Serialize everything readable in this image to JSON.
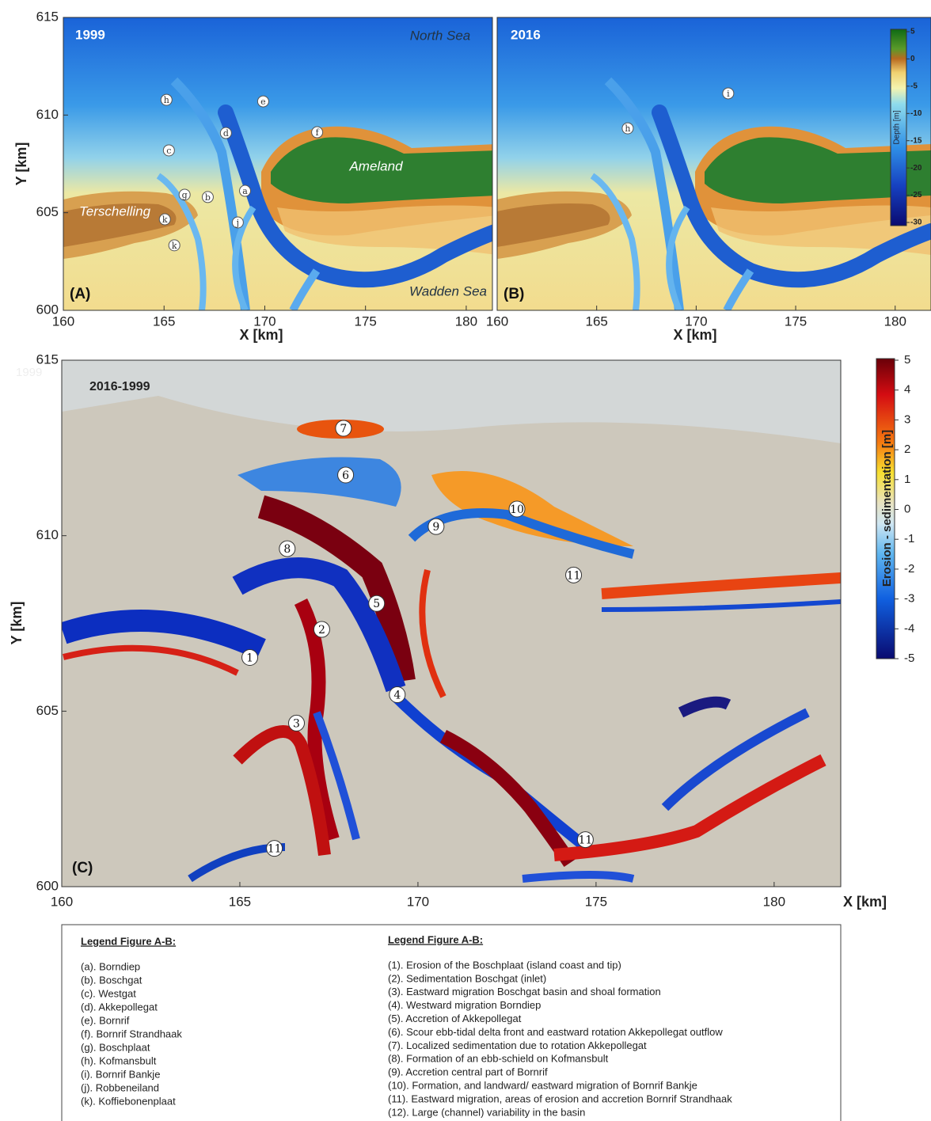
{
  "figure_ab": {
    "xlabel": "X [km]",
    "ylabel": "Y [km]",
    "ylim": [
      600,
      615
    ],
    "yticks": [
      600,
      605,
      610,
      615
    ],
    "colorbar": {
      "label": "Depth [m]",
      "lim": [
        -30,
        5
      ],
      "ticks": [
        5,
        0,
        -5,
        -10,
        -15,
        -20,
        -25,
        -30
      ]
    },
    "panels": [
      {
        "label": "(A)",
        "title": "1999",
        "xlim": [
          160,
          181.3
        ],
        "xticks": [
          160,
          165,
          170,
          175,
          180
        ],
        "place_names": [
          "North Sea",
          "Ameland",
          "Terschelling",
          "Wadden Sea"
        ],
        "markers": [
          {
            "id": "h",
            "x": 165.12,
            "y": 610.78
          },
          {
            "id": "e",
            "x": 169.92,
            "y": 610.7
          },
          {
            "id": "d",
            "x": 168.07,
            "y": 609.08
          },
          {
            "id": "f",
            "x": 172.6,
            "y": 609.12
          },
          {
            "id": "c",
            "x": 165.24,
            "y": 608.19
          },
          {
            "id": "g",
            "x": 166.02,
            "y": 605.92
          },
          {
            "id": "b",
            "x": 167.17,
            "y": 605.8
          },
          {
            "id": "a",
            "x": 169.02,
            "y": 606.12
          },
          {
            "id": "k",
            "x": 165.04,
            "y": 604.66
          },
          {
            "id": "j",
            "x": 168.66,
            "y": 604.5
          },
          {
            "id": "k",
            "x": 165.51,
            "y": 603.33
          }
        ]
      },
      {
        "label": "(B)",
        "title": "2016",
        "xlim": [
          160,
          181.8
        ],
        "xticks": [
          160,
          165,
          170,
          175,
          180
        ],
        "markers": [
          {
            "id": "h",
            "x": 166.56,
            "y": 609.32
          },
          {
            "id": "i",
            "x": 171.61,
            "y": 611.11
          }
        ]
      }
    ]
  },
  "figure_c": {
    "label": "(C)",
    "title": "2016-1999",
    "ghost_text": "1999",
    "xlabel": "X [km]",
    "ylabel": "Y [km]",
    "xlim": [
      160,
      181.87
    ],
    "xticks": [
      160,
      165,
      170,
      175,
      180
    ],
    "ylim": [
      600,
      615
    ],
    "yticks": [
      600,
      605,
      610,
      615
    ],
    "colorbar": {
      "label": "Erosion  -  sedimentation [m]",
      "lim": [
        -5,
        5
      ],
      "ticks": [
        5,
        4,
        3,
        2,
        1,
        0,
        -1,
        -2,
        -3,
        -4,
        -5
      ]
    },
    "markers": [
      {
        "id": "1",
        "x": 165.28,
        "y": 606.53
      },
      {
        "id": "2",
        "x": 167.3,
        "y": 607.33
      },
      {
        "id": "3",
        "x": 166.59,
        "y": 604.66
      },
      {
        "id": "4",
        "x": 169.42,
        "y": 605.47
      },
      {
        "id": "5",
        "x": 168.84,
        "y": 608.07
      },
      {
        "id": "6",
        "x": 167.97,
        "y": 611.73
      },
      {
        "id": "7",
        "x": 167.91,
        "y": 613.06
      },
      {
        "id": "8",
        "x": 166.33,
        "y": 609.63
      },
      {
        "id": "9",
        "x": 170.51,
        "y": 610.26
      },
      {
        "id": "10",
        "x": 172.78,
        "y": 610.76
      },
      {
        "id": "11",
        "x": 174.37,
        "y": 608.88
      },
      {
        "id": "11",
        "x": 165.97,
        "y": 601.09
      },
      {
        "id": "11",
        "x": 174.7,
        "y": 601.34
      }
    ]
  },
  "legend": {
    "left": {
      "title": "Legend Figure A-B:",
      "items": [
        "(a). Borndiep",
        "(b). Boschgat",
        "(c). Westgat",
        "(d). Akkepollegat",
        "(e). Bornrif",
        "(f). Bornrif Strandhaak",
        "(g). Boschplaat",
        "(h). Kofmansbult",
        "(i). Bornrif Bankje",
        "(j). Robbeneiland",
        "(k). Koffiebonenplaat"
      ]
    },
    "right": {
      "title": "Legend Figure A-B:",
      "items": [
        "(1). Erosion of the Boschplaat (island coast and tip)",
        "(2). Sedimentation Boschgat (inlet)",
        "(3). Eastward migration Boschgat basin and shoal formation",
        "(4). Westward migration Borndiep",
        "(5). Accretion of Akkepollegat",
        "(6). Scour ebb-tidal delta front and eastward rotation Akkepollegat outflow",
        "(7). Localized sedimentation due to rotation Akkepollegat",
        "(8). Formation of an ebb-schield on Kofmansbult",
        "(9). Accretion central part of Bornrif",
        "(10). Formation, and landward/ eastward migration of Bornrif Bankje",
        "(11). Eastward migration, areas of erosion and accretion Bornrif Strandhaak",
        "(12). Large (channel) variability in the basin"
      ]
    }
  }
}
